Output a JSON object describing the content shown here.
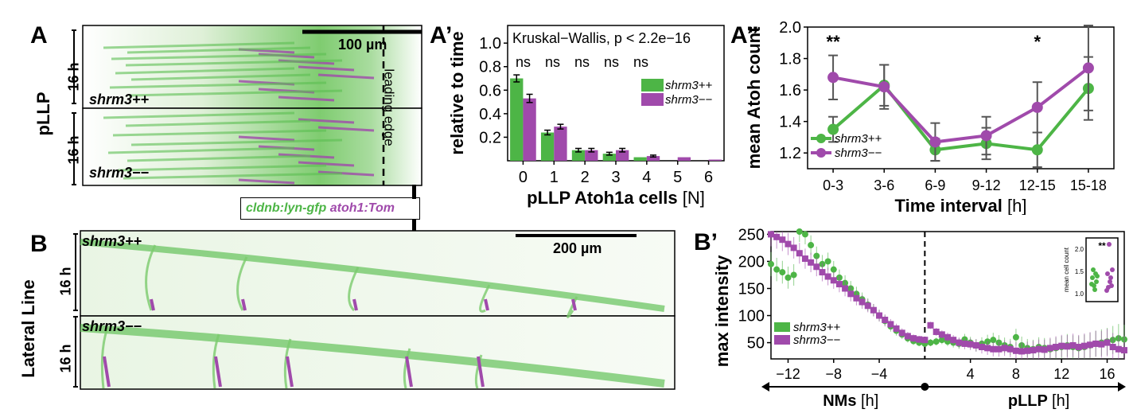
{
  "panel_labels": {
    "A": "A",
    "A_prime": "A’",
    "A_dprime": "A’’",
    "B": "B",
    "B_prime": "B’"
  },
  "panel_A": {
    "row_label": "pLLP",
    "duration_top": "16 h",
    "duration_bottom": "16 h",
    "genotype_top": "shrm3++",
    "genotype_bottom": "shrm3−−",
    "scalebar": "100 µm",
    "leading_edge": "leading edge"
  },
  "legend_markers": {
    "green": "cldnb:lyn-gfp",
    "magenta": "atoh1:Tom"
  },
  "panel_B": {
    "row_label": "Lateral Line",
    "duration_top": "16 h",
    "duration_bottom": "16 h",
    "genotype_top": "shrm3++",
    "genotype_bottom": "shrm3−−",
    "scalebar": "200 µm"
  },
  "colors": {
    "wt": "#4db546",
    "mut": "#a04aab",
    "error": "#333333"
  },
  "chart_data": [
    {
      "id": "A_prime",
      "type": "bar",
      "title": "Kruskal−Wallis, p < 2.2e−16",
      "ylabel": "relative to time",
      "xlabel": "pLLP Atoh1a cells",
      "xlabel_unit": "[N]",
      "categories": [
        "0",
        "1",
        "2",
        "3",
        "4",
        "5",
        "6"
      ],
      "ylim": [
        0,
        1.15
      ],
      "yticks": [
        "0.2",
        "0.4",
        "0.6",
        "0.8",
        "1.0"
      ],
      "significance": [
        "ns",
        "ns",
        "ns",
        "ns",
        "ns"
      ],
      "series": [
        {
          "name": "shrm3++",
          "values": [
            0.7,
            0.24,
            0.09,
            0.06,
            0.03,
            0.0,
            0.0
          ],
          "err": [
            0.03,
            0.02,
            0.015,
            0.012,
            0.0,
            0.0,
            0.0
          ]
        },
        {
          "name": "shrm3−−",
          "values": [
            0.53,
            0.29,
            0.09,
            0.09,
            0.04,
            0.03,
            0.01
          ],
          "err": [
            0.035,
            0.02,
            0.015,
            0.015,
            0.008,
            0.0,
            0.0
          ]
        }
      ],
      "legend": "right"
    },
    {
      "id": "A_dprime",
      "type": "line",
      "ylabel": "mean Atoh count",
      "xlabel": "Time interval",
      "xlabel_unit": "[h]",
      "categories": [
        "0-3",
        "3-6",
        "6-9",
        "9-12",
        "12-15",
        "15-18"
      ],
      "ylim": [
        1.1,
        2.0
      ],
      "yticks": [
        "1.2",
        "1.4",
        "1.6",
        "1.8",
        "2.0"
      ],
      "significance": [
        {
          "at": "0-3",
          "text": "**"
        },
        {
          "at": "12-15",
          "text": "*"
        }
      ],
      "series": [
        {
          "name": "shrm3++",
          "values": [
            1.35,
            1.63,
            1.22,
            1.26,
            1.22,
            1.61
          ],
          "err": [
            0.08,
            0.13,
            0.07,
            0.1,
            0.11,
            0.2
          ]
        },
        {
          "name": "shrm3−−",
          "values": [
            1.68,
            1.62,
            1.27,
            1.31,
            1.49,
            1.74
          ],
          "err": [
            0.14,
            0.14,
            0.12,
            0.12,
            0.16,
            0.27
          ]
        }
      ],
      "legend": "bottom-left"
    },
    {
      "id": "B_prime",
      "type": "scatter",
      "ylabel": "max intensity",
      "xlabel_left": "NMs",
      "xlabel_right": "pLLP",
      "xlabel_unit": "[h]",
      "xlim": [
        -13.5,
        17.5
      ],
      "ylim": [
        20,
        255
      ],
      "xticks": [
        "−12",
        "−8",
        "−4",
        "4",
        "8",
        "12",
        "16"
      ],
      "yticks": [
        "50",
        "100",
        "150",
        "200",
        "250"
      ],
      "series": [
        {
          "name": "shrm3++",
          "x": [
            -13.5,
            -13,
            -12.5,
            -12,
            -11.5,
            -11,
            -10.5,
            -10,
            -9.5,
            -9,
            -8.5,
            -8,
            -7.5,
            -7,
            -6.5,
            -6,
            -5.5,
            -5,
            -4.5,
            -4,
            -3.5,
            -3,
            -2.5,
            -2,
            -1.5,
            -1,
            -0.5,
            0,
            0.5,
            1,
            1.5,
            2,
            2.5,
            3,
            3.5,
            4,
            4.5,
            5,
            5.5,
            6,
            6.5,
            7,
            7.5,
            8,
            8.5,
            9,
            9.5,
            10,
            10.5,
            11,
            11.5,
            12,
            12.5,
            13,
            13.5,
            14,
            14.5,
            15,
            15.5,
            16,
            16.5,
            17,
            17.5
          ],
          "y": [
            195,
            185,
            180,
            170,
            175,
            255,
            250,
            230,
            210,
            195,
            200,
            185,
            170,
            160,
            150,
            140,
            130,
            120,
            110,
            100,
            90,
            80,
            72,
            65,
            58,
            53,
            50,
            48,
            50,
            52,
            55,
            52,
            50,
            48,
            56,
            50,
            45,
            48,
            52,
            55,
            50,
            45,
            42,
            60,
            45,
            40,
            38,
            42,
            40,
            38,
            40,
            42,
            45,
            42,
            40,
            42,
            45,
            48,
            50,
            52,
            55,
            58,
            56
          ]
        },
        {
          "name": "shrm3−−",
          "x": [
            -13.5,
            -13,
            -12.5,
            -12,
            -11.5,
            -11,
            -10.5,
            -10,
            -9.5,
            -9,
            -8.5,
            -8,
            -7.5,
            -7,
            -6.5,
            -6,
            -5.5,
            -5,
            -4.5,
            -4,
            -3.5,
            -3,
            -2.5,
            -2,
            -1.5,
            -1,
            -0.5,
            0,
            0.5,
            1,
            1.5,
            2,
            2.5,
            3,
            3.5,
            4,
            4.5,
            5,
            5.5,
            6,
            6.5,
            7,
            7.5,
            8,
            8.5,
            9,
            9.5,
            10,
            10.5,
            11,
            11.5,
            12,
            12.5,
            13,
            13.5,
            14,
            14.5,
            15,
            15.5,
            16,
            16.5,
            17,
            17.5
          ],
          "y": [
            250,
            245,
            240,
            232,
            225,
            215,
            205,
            198,
            190,
            180,
            172,
            165,
            158,
            150,
            140,
            132,
            125,
            118,
            110,
            100,
            92,
            84,
            76,
            68,
            62,
            58,
            56,
            55,
            82,
            70,
            65,
            60,
            55,
            50,
            48,
            47,
            45,
            42,
            40,
            38,
            38,
            40,
            38,
            35,
            34,
            35,
            36,
            38,
            37,
            40,
            42,
            44,
            43,
            45,
            42,
            44,
            46,
            48,
            47,
            50,
            42,
            38,
            36
          ]
        }
      ],
      "inset": {
        "ylabel": "mean cell count",
        "yticks": [
          "1.0",
          "1.5",
          "2.0"
        ],
        "significance": "**"
      },
      "legend": "bottom-left"
    }
  ]
}
